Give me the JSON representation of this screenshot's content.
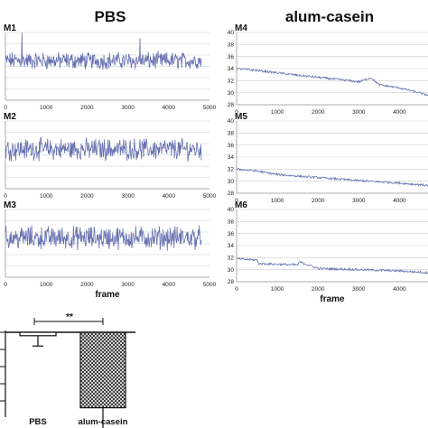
{
  "headers": {
    "left": "PBS",
    "right": "alum-casein"
  },
  "colors": {
    "trace": "#6670b0",
    "grid": "#cfcfcf",
    "axis": "#9a9a9a",
    "bar_fill": "#ffffff",
    "bar_hatch": "#222222"
  },
  "chart_data": [
    {
      "type": "line",
      "label": "M1",
      "group": "PBS",
      "xlim": [
        0,
        5000
      ],
      "xticks": [
        0,
        1000,
        2000,
        3000,
        4000,
        5000
      ],
      "yticks_shown": false,
      "trace": "noisy",
      "baseline": 35,
      "noise": 1.2,
      "spikes": [
        {
          "x": 400,
          "y": 40
        },
        {
          "x": 3300,
          "y": 39
        }
      ]
    },
    {
      "type": "line",
      "label": "M2",
      "group": "PBS",
      "xlim": [
        0,
        5000
      ],
      "xticks": [
        0,
        1000,
        2000,
        3000,
        4000,
        5000
      ],
      "yticks_shown": false,
      "trace": "noisy",
      "baseline": 35,
      "noise": 1.5
    },
    {
      "type": "line",
      "label": "M3",
      "group": "PBS",
      "xlim": [
        0,
        5000
      ],
      "xticks": [
        0,
        1000,
        2000,
        3000,
        4000,
        5000
      ],
      "yticks_shown": false,
      "xlabel": "frame",
      "trace": "noisy",
      "baseline": 35,
      "noise": 1.6
    },
    {
      "type": "line",
      "label": "M4",
      "group": "alum-casein",
      "xlim": [
        0,
        4700
      ],
      "ylim": [
        28,
        40
      ],
      "yticks": [
        28,
        30,
        32,
        34,
        36,
        38,
        40
      ],
      "xticks": [
        0,
        1000,
        2000,
        3000,
        4000
      ],
      "trace": "declining",
      "x": [
        0,
        500,
        1500,
        2500,
        3000,
        3300,
        3500,
        4000,
        4700
      ],
      "y": [
        34,
        33.7,
        32.9,
        32.2,
        31.8,
        32.5,
        31.3,
        30.8,
        29.6
      ]
    },
    {
      "type": "line",
      "label": "M5",
      "group": "alum-casein",
      "xlim": [
        0,
        4700
      ],
      "ylim": [
        28,
        40
      ],
      "yticks": [
        28,
        30,
        32,
        34,
        36,
        38,
        40
      ],
      "xticks": [
        0,
        1000,
        2000,
        3000,
        4000
      ],
      "trace": "declining",
      "x": [
        0,
        500,
        1000,
        2000,
        3000,
        4000,
        4700
      ],
      "y": [
        32,
        31.7,
        31.1,
        30.6,
        30.1,
        29.7,
        29.3
      ]
    },
    {
      "type": "line",
      "label": "M6",
      "group": "alum-casein",
      "xlim": [
        0,
        4700
      ],
      "ylim": [
        28,
        40
      ],
      "yticks": [
        28,
        30,
        32,
        34,
        36,
        38,
        40
      ],
      "xticks": [
        0,
        1000,
        2000,
        3000,
        4000
      ],
      "xlabel": "frame",
      "trace": "declining",
      "x": [
        0,
        500,
        550,
        1500,
        1550,
        2000,
        3000,
        4000,
        4700
      ],
      "y": [
        31.8,
        31.6,
        31.0,
        30.8,
        31.3,
        30.2,
        30.0,
        29.8,
        29.5
      ]
    },
    {
      "type": "bar",
      "categories": [
        "PBS",
        "alum-casein"
      ],
      "values": [
        -0.2,
        -4.4
      ],
      "errors": [
        0.6,
        1.4
      ],
      "significance": "**",
      "styles": [
        "plain",
        "hatched"
      ]
    }
  ]
}
